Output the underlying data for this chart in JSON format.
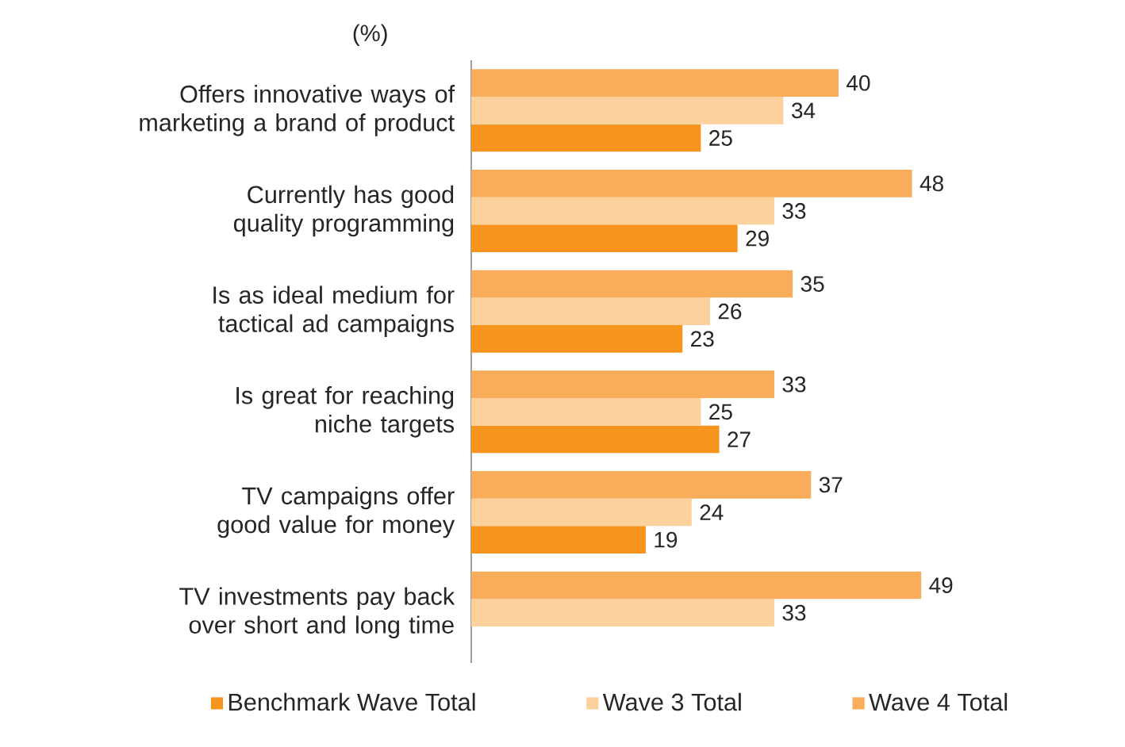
{
  "chart_data": {
    "type": "bar",
    "orientation": "horizontal",
    "data_labels": true,
    "legend": "bottom",
    "marker": "square",
    "annotations": [
      "(%)"
    ],
    "categories": [
      "Offers innovative ways of marketing a brand of product",
      "Currently has good quality programming",
      "Is as ideal medium for tactical ad campaigns",
      "Is great for reaching niche targets",
      "TV campaigns offer good value for money",
      "TV investments pay back over short and long time"
    ],
    "series": [
      {
        "name": "Benchmark Wave Total",
        "color": "#f7941d",
        "values": [
          25,
          29,
          23,
          27,
          19,
          null
        ]
      },
      {
        "name": "Wave 3 Total",
        "color": "#fdd19c",
        "values": [
          34,
          33,
          26,
          25,
          24,
          33
        ]
      },
      {
        "name": "Wave 4 Total",
        "color": "#f9ad5a",
        "values": [
          40,
          48,
          35,
          33,
          37,
          49
        ]
      }
    ]
  }
}
